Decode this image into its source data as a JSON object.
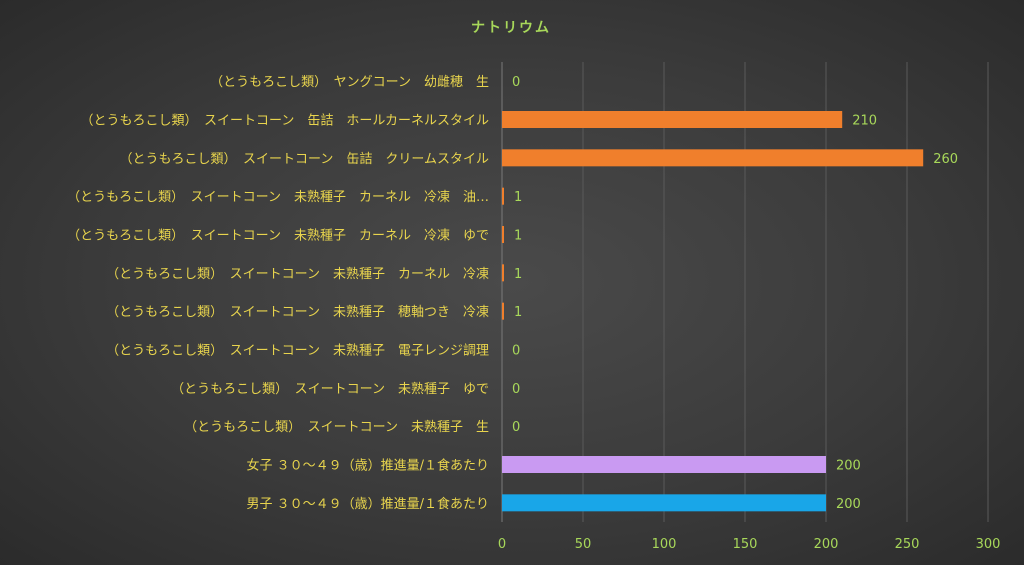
{
  "chart_data": {
    "type": "bar",
    "orientation": "horizontal",
    "title": "ナトリウム",
    "categories": [
      "（とうもろこし類）　ヤングコーン　幼雌穂　生",
      "（とうもろこし類）　スイートコーン　缶詰　ホールカーネルスタイル",
      "（とうもろこし類）　スイートコーン　缶詰　クリームスタイル",
      "（とうもろこし類）　スイートコーン　未熟種子　カーネル　冷凍　油…",
      "（とうもろこし類）　スイートコーン　未熟種子　カーネル　冷凍　ゆで",
      "（とうもろこし類）　スイートコーン　未熟種子　カーネル　冷凍",
      "（とうもろこし類）　スイートコーン　未熟種子　穂軸つき　冷凍",
      "（とうもろこし類）　スイートコーン　未熟種子　電子レンジ調理",
      "（とうもろこし類）　スイートコーン　未熟種子　ゆで",
      "（とうもろこし類）　スイートコーン　未熟種子　生",
      "女子 ３０～４９（歳）推進量/１食あたり",
      "男子 ３０～４９（歳）推進量/１食あたり"
    ],
    "values": [
      0,
      210,
      260,
      1,
      1,
      1,
      1,
      0,
      0,
      0,
      200,
      200
    ],
    "data_labels": [
      "0",
      "210",
      "260",
      "1",
      "1",
      "1",
      "1",
      "0",
      "0",
      "0",
      "200",
      "200"
    ],
    "bar_colors": [
      "#f07f2c",
      "#f07f2c",
      "#f07f2c",
      "#f07f2c",
      "#f07f2c",
      "#f07f2c",
      "#f07f2c",
      "#f07f2c",
      "#f07f2c",
      "#f07f2c",
      "#c99af2",
      "#19a6e8"
    ],
    "xlim": [
      0,
      300
    ],
    "xticks": [
      "0",
      "50",
      "100",
      "150",
      "200",
      "250",
      "300"
    ],
    "grid": true,
    "legend": "none"
  }
}
